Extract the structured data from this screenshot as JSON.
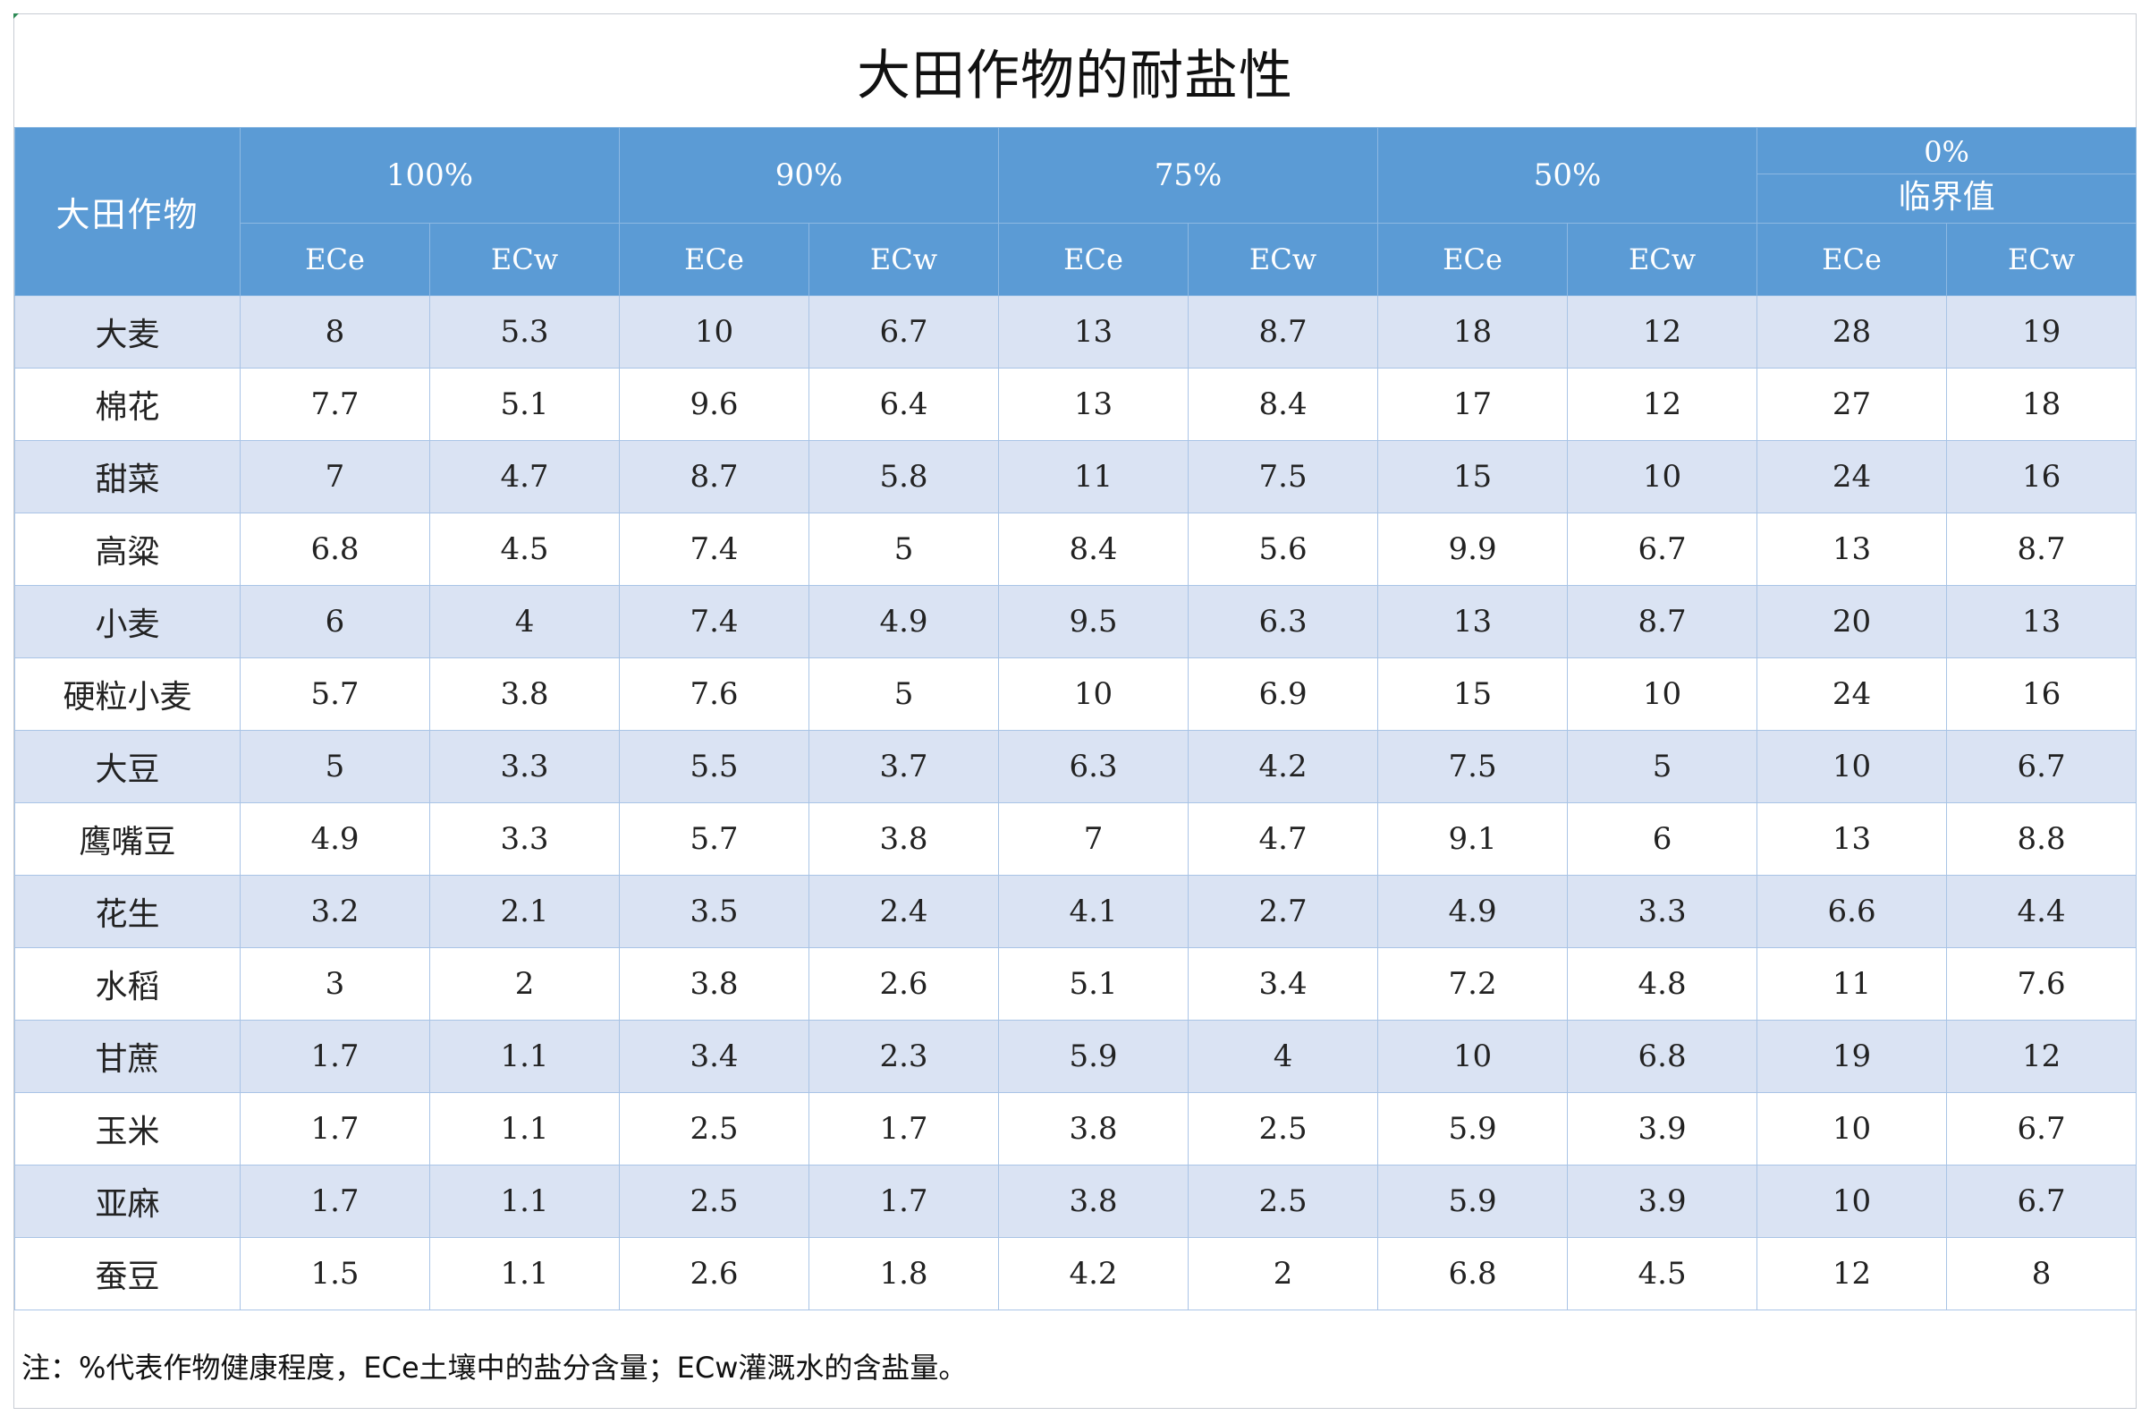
{
  "title": "大田作物的耐盐性",
  "header": {
    "crop_label": "大田作物",
    "groups": [
      {
        "label": "100%",
        "sub": ""
      },
      {
        "label": "90%",
        "sub": ""
      },
      {
        "label": "75%",
        "sub": ""
      },
      {
        "label": "50%",
        "sub": ""
      },
      {
        "label": "0%",
        "sub": "临界值"
      }
    ],
    "sub_cols": [
      "ECe",
      "ECw"
    ]
  },
  "rows": [
    {
      "crop": "大麦",
      "values": [
        "8",
        "5.3",
        "10",
        "6.7",
        "13",
        "8.7",
        "18",
        "12",
        "28",
        "19"
      ]
    },
    {
      "crop": "棉花",
      "values": [
        "7.7",
        "5.1",
        "9.6",
        "6.4",
        "13",
        "8.4",
        "17",
        "12",
        "27",
        "18"
      ]
    },
    {
      "crop": "甜菜",
      "values": [
        "7",
        "4.7",
        "8.7",
        "5.8",
        "11",
        "7.5",
        "15",
        "10",
        "24",
        "16"
      ]
    },
    {
      "crop": "高粱",
      "values": [
        "6.8",
        "4.5",
        "7.4",
        "5",
        "8.4",
        "5.6",
        "9.9",
        "6.7",
        "13",
        "8.7"
      ]
    },
    {
      "crop": "小麦",
      "values": [
        "6",
        "4",
        "7.4",
        "4.9",
        "9.5",
        "6.3",
        "13",
        "8.7",
        "20",
        "13"
      ]
    },
    {
      "crop": "硬粒小麦",
      "values": [
        "5.7",
        "3.8",
        "7.6",
        "5",
        "10",
        "6.9",
        "15",
        "10",
        "24",
        "16"
      ]
    },
    {
      "crop": "大豆",
      "values": [
        "5",
        "3.3",
        "5.5",
        "3.7",
        "6.3",
        "4.2",
        "7.5",
        "5",
        "10",
        "6.7"
      ]
    },
    {
      "crop": "鹰嘴豆",
      "values": [
        "4.9",
        "3.3",
        "5.7",
        "3.8",
        "7",
        "4.7",
        "9.1",
        "6",
        "13",
        "8.8"
      ]
    },
    {
      "crop": "花生",
      "values": [
        "3.2",
        "2.1",
        "3.5",
        "2.4",
        "4.1",
        "2.7",
        "4.9",
        "3.3",
        "6.6",
        "4.4"
      ]
    },
    {
      "crop": "水稻",
      "values": [
        "3",
        "2",
        "3.8",
        "2.6",
        "5.1",
        "3.4",
        "7.2",
        "4.8",
        "11",
        "7.6"
      ]
    },
    {
      "crop": "甘蔗",
      "values": [
        "1.7",
        "1.1",
        "3.4",
        "2.3",
        "5.9",
        "4",
        "10",
        "6.8",
        "19",
        "12"
      ]
    },
    {
      "crop": "玉米",
      "values": [
        "1.7",
        "1.1",
        "2.5",
        "1.7",
        "3.8",
        "2.5",
        "5.9",
        "3.9",
        "10",
        "6.7"
      ]
    },
    {
      "crop": "亚麻",
      "values": [
        "1.7",
        "1.1",
        "2.5",
        "1.7",
        "3.8",
        "2.5",
        "5.9",
        "3.9",
        "10",
        "6.7"
      ]
    },
    {
      "crop": "蚕豆",
      "values": [
        "1.5",
        "1.1",
        "2.6",
        "1.8",
        "4.2",
        "2",
        "6.8",
        "4.5",
        "12",
        "8"
      ]
    }
  ],
  "note": "注：%代表作物健康程度，ECe土壤中的盐分含量；ECw灌溉水的含盐量。",
  "colors": {
    "header_bg": "#5b9bd5",
    "band_row": "#dae3f3",
    "plain_row": "#ffffff"
  }
}
